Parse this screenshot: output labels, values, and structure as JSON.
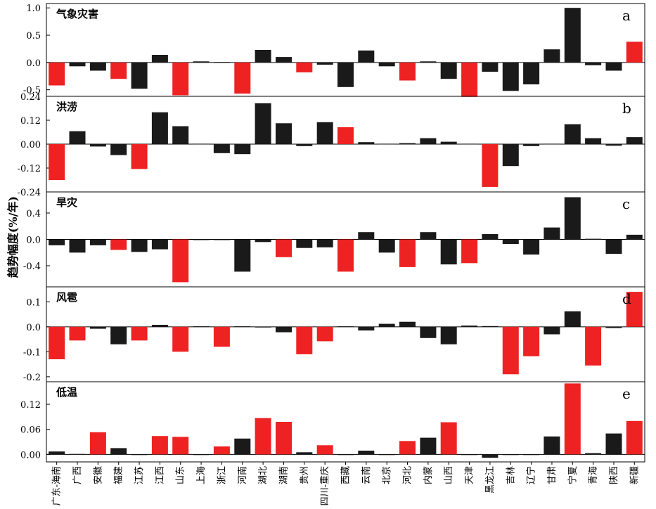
{
  "figure": {
    "ylabel": "趋势幅度(%/年)",
    "colors": {
      "red": "#ee2222",
      "black": "#1a1a1a"
    },
    "categories": [
      "广东-海南",
      "广西",
      "安徽",
      "福建",
      "江苏",
      "江西",
      "山东",
      "上海",
      "浙江",
      "河南",
      "湖北",
      "湖南",
      "贵州",
      "四川-重庆",
      "西藏",
      "云南",
      "北京",
      "河北",
      "内蒙",
      "山西",
      "天津",
      "黑龙江",
      "吉林",
      "辽宁",
      "甘肃",
      "宁夏",
      "青海",
      "陕西",
      "新疆"
    ]
  },
  "chart_data": [
    {
      "type": "bar",
      "title": "气象灾害",
      "panel_letter": "a",
      "ylim": [
        -0.62,
        1.08
      ],
      "yticks": [
        1.0,
        0.5,
        0.0,
        -0.5
      ],
      "ytick_labels": [
        "1.0",
        "0.5",
        "0.0",
        "-0.5"
      ],
      "values": [
        -0.42,
        -0.07,
        -0.15,
        -0.3,
        -0.48,
        0.14,
        -0.6,
        0.02,
        0.01,
        -0.57,
        0.23,
        0.1,
        -0.18,
        -0.04,
        -0.45,
        0.22,
        -0.07,
        -0.33,
        0.02,
        -0.3,
        -0.63,
        -0.17,
        -0.52,
        -0.4,
        0.24,
        1.0,
        -0.05,
        -0.15,
        0.38
      ],
      "colors": [
        "red",
        "black",
        "black",
        "red",
        "black",
        "black",
        "red",
        "black",
        "black",
        "red",
        "black",
        "black",
        "red",
        "black",
        "black",
        "black",
        "black",
        "red",
        "black",
        "black",
        "red",
        "black",
        "black",
        "black",
        "black",
        "black",
        "black",
        "black",
        "red"
      ]
    },
    {
      "type": "bar",
      "title": "洪涝",
      "panel_letter": "b",
      "ylim": [
        -0.24,
        0.24
      ],
      "yticks": [
        0.24,
        0.12,
        0.0,
        -0.12,
        -0.24
      ],
      "ytick_labels": [
        "0.24",
        "0.12",
        "0.00",
        "-0.12",
        "-0.24"
      ],
      "values": [
        -0.18,
        0.065,
        -0.012,
        -0.055,
        -0.125,
        0.16,
        0.09,
        0.002,
        -0.045,
        -0.05,
        0.205,
        0.105,
        -0.01,
        0.11,
        0.085,
        0.01,
        0.002,
        0.005,
        0.03,
        0.012,
        0.002,
        -0.215,
        -0.11,
        -0.01,
        0.002,
        0.1,
        0.03,
        -0.008,
        0.035
      ],
      "colors": [
        "red",
        "black",
        "black",
        "black",
        "red",
        "black",
        "black",
        "black",
        "black",
        "black",
        "black",
        "black",
        "black",
        "black",
        "red",
        "black",
        "black",
        "black",
        "black",
        "black",
        "black",
        "red",
        "black",
        "black",
        "black",
        "black",
        "black",
        "black",
        "black"
      ]
    },
    {
      "type": "bar",
      "title": "旱灾",
      "panel_letter": "c",
      "ylim": [
        -0.72,
        0.72
      ],
      "yticks": [
        0.4,
        0.0,
        -0.4
      ],
      "ytick_labels": [
        "0.4",
        "0.0",
        "-0.4"
      ],
      "values": [
        -0.09,
        -0.2,
        -0.09,
        -0.16,
        -0.19,
        -0.15,
        -0.65,
        0.0,
        0.0,
        -0.49,
        -0.04,
        -0.27,
        -0.13,
        -0.12,
        -0.49,
        0.11,
        -0.2,
        -0.42,
        0.11,
        -0.38,
        -0.36,
        0.08,
        -0.07,
        -0.23,
        0.18,
        0.64,
        0.01,
        -0.22,
        0.07
      ],
      "colors": [
        "black",
        "black",
        "black",
        "red",
        "black",
        "black",
        "red",
        "black",
        "black",
        "black",
        "black",
        "red",
        "black",
        "black",
        "red",
        "black",
        "black",
        "red",
        "black",
        "black",
        "red",
        "black",
        "black",
        "black",
        "black",
        "black",
        "black",
        "black",
        "black"
      ]
    },
    {
      "type": "bar",
      "title": "风雹",
      "panel_letter": "d",
      "ylim": [
        -0.22,
        0.16
      ],
      "yticks": [
        0.1,
        0.0,
        -0.1,
        -0.2
      ],
      "ytick_labels": [
        "0.1",
        "0.0",
        "-0.1",
        "-0.2"
      ],
      "values": [
        -0.13,
        -0.055,
        -0.008,
        -0.07,
        -0.055,
        0.008,
        -0.1,
        0.002,
        -0.08,
        0.002,
        0.0,
        -0.022,
        -0.11,
        -0.058,
        0.002,
        -0.015,
        0.012,
        0.02,
        -0.045,
        -0.07,
        0.005,
        0.003,
        -0.19,
        -0.118,
        -0.03,
        0.062,
        -0.155,
        -0.005,
        0.14
      ],
      "colors": [
        "red",
        "red",
        "black",
        "black",
        "red",
        "black",
        "red",
        "black",
        "red",
        "black",
        "black",
        "black",
        "red",
        "red",
        "black",
        "black",
        "black",
        "black",
        "black",
        "black",
        "black",
        "black",
        "red",
        "red",
        "black",
        "black",
        "red",
        "black",
        "red"
      ]
    },
    {
      "type": "bar",
      "title": "低温",
      "panel_letter": "e",
      "ylim": [
        -0.018,
        0.174
      ],
      "yticks": [
        0.12,
        0.06,
        0.0
      ],
      "ytick_labels": [
        "0.12",
        "0.06",
        "0.00"
      ],
      "values": [
        0.007,
        0.001,
        0.053,
        0.015,
        0.0,
        0.044,
        0.042,
        0.0,
        0.019,
        0.038,
        0.087,
        0.078,
        0.005,
        0.022,
        0.0,
        0.009,
        0.0,
        0.032,
        0.04,
        0.077,
        0.0,
        -0.008,
        0.0,
        0.0,
        0.043,
        0.17,
        0.003,
        0.05,
        0.08
      ],
      "colors": [
        "black",
        "black",
        "red",
        "black",
        "black",
        "red",
        "red",
        "black",
        "red",
        "black",
        "red",
        "red",
        "black",
        "red",
        "black",
        "black",
        "black",
        "red",
        "black",
        "red",
        "black",
        "black",
        "black",
        "black",
        "black",
        "red",
        "black",
        "black",
        "red"
      ]
    }
  ]
}
